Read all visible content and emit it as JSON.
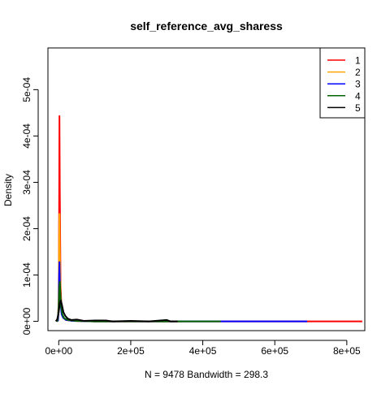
{
  "chart_data": {
    "type": "line",
    "title": "self_reference_avg_sharess",
    "xlabel": "N = 9478   Bandwidth = 298.3",
    "ylabel": "Density",
    "xlim": [
      -30000,
      850000
    ],
    "ylim": [
      -2e-05,
      0.00059
    ],
    "x_ticks": [
      {
        "value": 0,
        "label": "0e+00"
      },
      {
        "value": 200000,
        "label": "2e+05"
      },
      {
        "value": 400000,
        "label": "4e+05"
      },
      {
        "value": 600000,
        "label": "6e+05"
      },
      {
        "value": 800000,
        "label": "8e+05"
      }
    ],
    "y_ticks": [
      {
        "value": 0,
        "label": "0e+00"
      },
      {
        "value": 0.0001,
        "label": "1e-04"
      },
      {
        "value": 0.0002,
        "label": "2e-04"
      },
      {
        "value": 0.0003,
        "label": "3e-04"
      },
      {
        "value": 0.0004,
        "label": "4e-04"
      },
      {
        "value": 0.0005,
        "label": "5e-04"
      }
    ],
    "legend_position": "top-right",
    "series": [
      {
        "name": "1",
        "color": "#FF0000",
        "x": [
          -5000,
          -2000,
          0,
          1000,
          2000,
          3000,
          5000,
          8000,
          12000,
          20000,
          40000,
          100000,
          300000,
          600000,
          843000
        ],
        "y": [
          0,
          2e-06,
          5e-05,
          0.00022,
          0.000443,
          0.00028,
          8e-05,
          2e-05,
          8e-06,
          3e-06,
          1e-06,
          0,
          0,
          0,
          0
        ]
      },
      {
        "name": "2",
        "color": "#FFA500",
        "x": [
          -5000,
          -2000,
          0,
          1000,
          2000,
          3000,
          5000,
          8000,
          12000,
          20000,
          40000,
          100000,
          200000,
          340000
        ],
        "y": [
          0,
          2e-06,
          4e-05,
          0.00016,
          0.000232,
          0.00015,
          6e-05,
          2e-05,
          8e-06,
          3e-06,
          1e-06,
          0,
          0,
          0
        ]
      },
      {
        "name": "3",
        "color": "#0000FF",
        "x": [
          -5000,
          -2000,
          0,
          1000,
          2000,
          3000,
          5000,
          8000,
          12000,
          20000,
          40000,
          100000,
          300000,
          500000,
          690000
        ],
        "y": [
          0,
          2e-06,
          3e-05,
          0.0001,
          0.000128,
          9e-05,
          4e-05,
          1.5e-05,
          8e-06,
          3e-06,
          1e-06,
          0,
          0,
          0,
          0
        ]
      },
      {
        "name": "4",
        "color": "#006400",
        "x": [
          -6000,
          -3000,
          0,
          1500,
          3000,
          4500,
          7000,
          10000,
          15000,
          25000,
          50000,
          100000,
          300000,
          450000
        ],
        "y": [
          0,
          3e-06,
          3e-05,
          7e-05,
          8.5e-05,
          6e-05,
          3e-05,
          1.5e-05,
          7e-06,
          3e-06,
          1e-06,
          0,
          0,
          0
        ]
      },
      {
        "name": "5",
        "color": "#000000",
        "x": [
          -8000,
          -4000,
          0,
          3000,
          6000,
          9000,
          13000,
          18000,
          25000,
          35000,
          50000,
          70000,
          100000,
          130000,
          150000,
          200000,
          250000,
          300000,
          310000,
          330000
        ],
        "y": [
          0,
          5e-06,
          2e-05,
          4e-05,
          4.5e-05,
          3.5e-05,
          2e-05,
          1.2e-05,
          6e-06,
          3e-06,
          4e-06,
          1e-06,
          2e-06,
          2e-06,
          0,
          1e-06,
          0,
          3e-06,
          0,
          0
        ]
      }
    ]
  }
}
